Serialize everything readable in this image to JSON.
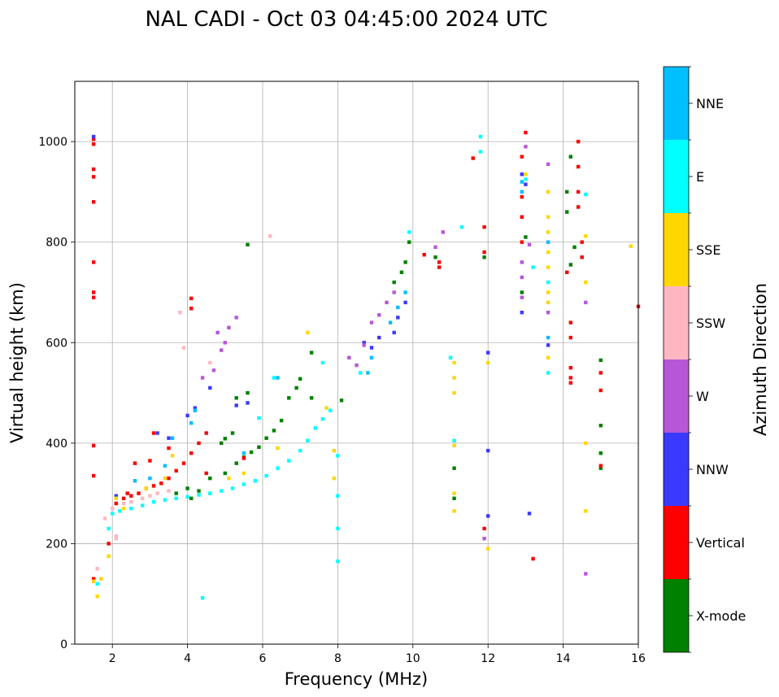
{
  "chart_data": {
    "type": "scatter",
    "title": "NAL CADI - Oct 03 04:45:00 2024 UTC",
    "xlabel": "Frequency (MHz)",
    "ylabel": "Virtual height (km)",
    "xlim": [
      1,
      16
    ],
    "ylim": [
      0,
      1120
    ],
    "xticks": [
      2,
      4,
      6,
      8,
      10,
      12,
      14,
      16
    ],
    "yticks": [
      0,
      200,
      400,
      600,
      800,
      1000
    ],
    "grid": true,
    "colorbar": {
      "label": "Azimuth Direction",
      "categories": [
        {
          "name": "X-mode",
          "color": "#008000"
        },
        {
          "name": "Vertical",
          "color": "#ff0000"
        },
        {
          "name": "NNW",
          "color": "#3a3aff"
        },
        {
          "name": "W",
          "color": "#b757d8"
        },
        {
          "name": "SSW",
          "color": "#ffb6c1"
        },
        {
          "name": "SSE",
          "color": "#ffd700"
        },
        {
          "name": "E",
          "color": "#00ffff"
        },
        {
          "name": "NNE",
          "color": "#00bfff"
        }
      ]
    },
    "series": [
      {
        "name": "X-mode",
        "points": [
          [
            5.3,
            360
          ],
          [
            5.5,
            372
          ],
          [
            5.7,
            382
          ],
          [
            5.9,
            392
          ],
          [
            6.1,
            410
          ],
          [
            6.3,
            425
          ],
          [
            6.5,
            445
          ],
          [
            6.7,
            490
          ],
          [
            6.9,
            510
          ],
          [
            7.0,
            528
          ],
          [
            7.3,
            580
          ],
          [
            5.0,
            409
          ],
          [
            5.2,
            420
          ],
          [
            5.6,
            795
          ],
          [
            7.3,
            490
          ],
          [
            8.1,
            485
          ],
          [
            9.5,
            720
          ],
          [
            9.7,
            740
          ],
          [
            9.8,
            760
          ],
          [
            9.9,
            800
          ],
          [
            10.6,
            770
          ],
          [
            11.9,
            770
          ],
          [
            11.1,
            290
          ],
          [
            11.1,
            350
          ],
          [
            12.9,
            700
          ],
          [
            13.0,
            810
          ],
          [
            14.1,
            860
          ],
          [
            14.1,
            900
          ],
          [
            14.2,
            970
          ],
          [
            14.2,
            755
          ],
          [
            14.3,
            790
          ],
          [
            15.0,
            350
          ],
          [
            15.0,
            380
          ],
          [
            15.0,
            435
          ],
          [
            15.0,
            565
          ],
          [
            4.1,
            290
          ],
          [
            4.6,
            330
          ],
          [
            4.9,
            400
          ],
          [
            5.0,
            340
          ],
          [
            4.3,
            305
          ],
          [
            5.3,
            490
          ],
          [
            5.6,
            500
          ],
          [
            3.7,
            300
          ],
          [
            4.0,
            310
          ]
        ]
      },
      {
        "name": "Vertical",
        "points": [
          [
            1.5,
            1005
          ],
          [
            1.5,
            995
          ],
          [
            1.5,
            945
          ],
          [
            1.5,
            930
          ],
          [
            1.5,
            880
          ],
          [
            1.5,
            760
          ],
          [
            1.5,
            700
          ],
          [
            1.5,
            690
          ],
          [
            1.5,
            395
          ],
          [
            1.5,
            335
          ],
          [
            1.5,
            130
          ],
          [
            1.9,
            200
          ],
          [
            2.1,
            280
          ],
          [
            2.3,
            290
          ],
          [
            2.4,
            300
          ],
          [
            2.5,
            295
          ],
          [
            2.7,
            300
          ],
          [
            2.9,
            310
          ],
          [
            3.1,
            315
          ],
          [
            3.3,
            320
          ],
          [
            3.5,
            330
          ],
          [
            3.7,
            345
          ],
          [
            3.9,
            360
          ],
          [
            4.1,
            380
          ],
          [
            4.3,
            400
          ],
          [
            4.5,
            420
          ],
          [
            4.1,
            688
          ],
          [
            4.1,
            668
          ],
          [
            3.0,
            365
          ],
          [
            3.5,
            390
          ],
          [
            2.6,
            360
          ],
          [
            3.1,
            420
          ],
          [
            4.5,
            340
          ],
          [
            5.5,
            370
          ],
          [
            10.3,
            775
          ],
          [
            10.7,
            760
          ],
          [
            10.7,
            750
          ],
          [
            11.6,
            967
          ],
          [
            11.9,
            830
          ],
          [
            11.9,
            780
          ],
          [
            11.9,
            230
          ],
          [
            12.9,
            970
          ],
          [
            12.9,
            890
          ],
          [
            12.9,
            850
          ],
          [
            12.9,
            800
          ],
          [
            13.0,
            1018
          ],
          [
            13.2,
            170
          ],
          [
            14.2,
            640
          ],
          [
            14.2,
            610
          ],
          [
            14.2,
            550
          ],
          [
            14.2,
            530
          ],
          [
            14.2,
            520
          ],
          [
            14.4,
            1000
          ],
          [
            14.4,
            950
          ],
          [
            14.4,
            900
          ],
          [
            14.4,
            870
          ],
          [
            14.5,
            800
          ],
          [
            14.5,
            770
          ],
          [
            15.0,
            540
          ],
          [
            15.0,
            505
          ],
          [
            15.0,
            355
          ],
          [
            16.0,
            672
          ],
          [
            14.1,
            740
          ]
        ]
      },
      {
        "name": "NNW",
        "points": [
          [
            1.5,
            1010
          ],
          [
            2.1,
            295
          ],
          [
            3.2,
            420
          ],
          [
            3.5,
            410
          ],
          [
            4.0,
            455
          ],
          [
            4.2,
            470
          ],
          [
            4.6,
            510
          ],
          [
            5.3,
            475
          ],
          [
            5.6,
            480
          ],
          [
            8.7,
            600
          ],
          [
            8.9,
            590
          ],
          [
            9.1,
            610
          ],
          [
            9.5,
            620
          ],
          [
            9.6,
            650
          ],
          [
            9.8,
            680
          ],
          [
            12.0,
            385
          ],
          [
            12.0,
            580
          ],
          [
            12.0,
            255
          ],
          [
            12.9,
            660
          ],
          [
            12.9,
            935
          ],
          [
            13.1,
            260
          ],
          [
            13.0,
            915
          ],
          [
            13.6,
            595
          ]
        ]
      },
      {
        "name": "W",
        "points": [
          [
            4.4,
            530
          ],
          [
            4.7,
            545
          ],
          [
            4.9,
            585
          ],
          [
            5.0,
            600
          ],
          [
            5.1,
            630
          ],
          [
            4.8,
            620
          ],
          [
            5.3,
            650
          ],
          [
            8.3,
            570
          ],
          [
            8.5,
            555
          ],
          [
            8.7,
            595
          ],
          [
            8.9,
            640
          ],
          [
            9.1,
            655
          ],
          [
            9.3,
            680
          ],
          [
            9.5,
            700
          ],
          [
            10.6,
            790
          ],
          [
            10.8,
            820
          ],
          [
            12.9,
            760
          ],
          [
            12.9,
            730
          ],
          [
            12.9,
            690
          ],
          [
            13.1,
            795
          ],
          [
            13.6,
            660
          ],
          [
            13.6,
            955
          ],
          [
            14.6,
            680
          ],
          [
            14.6,
            140
          ],
          [
            13.0,
            990
          ],
          [
            11.9,
            210
          ]
        ]
      },
      {
        "name": "SSW",
        "points": [
          [
            2.0,
            270
          ],
          [
            2.3,
            280
          ],
          [
            2.5,
            283
          ],
          [
            2.8,
            290
          ],
          [
            3.0,
            295
          ],
          [
            3.2,
            300
          ],
          [
            3.5,
            305
          ],
          [
            1.8,
            250
          ],
          [
            1.6,
            150
          ],
          [
            2.1,
            215
          ],
          [
            2.1,
            210
          ],
          [
            3.8,
            660
          ],
          [
            6.2,
            812
          ],
          [
            3.9,
            590
          ],
          [
            4.6,
            560
          ]
        ]
      },
      {
        "name": "SSE",
        "points": [
          [
            1.5,
            125
          ],
          [
            1.6,
            95
          ],
          [
            1.7,
            130
          ],
          [
            1.9,
            175
          ],
          [
            2.1,
            290
          ],
          [
            2.3,
            270
          ],
          [
            2.9,
            310
          ],
          [
            3.4,
            330
          ],
          [
            3.6,
            375
          ],
          [
            4.6,
            300
          ],
          [
            5.1,
            330
          ],
          [
            5.5,
            340
          ],
          [
            6.4,
            390
          ],
          [
            7.2,
            620
          ],
          [
            7.7,
            470
          ],
          [
            7.9,
            330
          ],
          [
            7.9,
            385
          ],
          [
            11.1,
            500
          ],
          [
            11.1,
            530
          ],
          [
            11.1,
            560
          ],
          [
            11.1,
            395
          ],
          [
            11.1,
            300
          ],
          [
            11.1,
            265
          ],
          [
            12.0,
            560
          ],
          [
            12.0,
            190
          ],
          [
            13.0,
            935
          ],
          [
            13.6,
            900
          ],
          [
            13.6,
            850
          ],
          [
            13.6,
            820
          ],
          [
            13.6,
            780
          ],
          [
            13.6,
            750
          ],
          [
            13.6,
            700
          ],
          [
            13.6,
            680
          ],
          [
            13.6,
            570
          ],
          [
            14.6,
            812
          ],
          [
            14.6,
            720
          ],
          [
            14.6,
            400
          ],
          [
            14.6,
            265
          ],
          [
            15.8,
            792
          ]
        ]
      },
      {
        "name": "E",
        "points": [
          [
            1.6,
            120
          ],
          [
            1.9,
            230
          ],
          [
            2.0,
            260
          ],
          [
            2.2,
            265
          ],
          [
            2.5,
            270
          ],
          [
            2.8,
            276
          ],
          [
            3.1,
            283
          ],
          [
            3.4,
            287
          ],
          [
            3.7,
            290
          ],
          [
            4.0,
            293
          ],
          [
            4.3,
            297
          ],
          [
            4.6,
            300
          ],
          [
            4.9,
            305
          ],
          [
            5.2,
            310
          ],
          [
            5.5,
            318
          ],
          [
            5.8,
            325
          ],
          [
            6.1,
            335
          ],
          [
            6.4,
            350
          ],
          [
            6.7,
            365
          ],
          [
            7.0,
            385
          ],
          [
            7.2,
            405
          ],
          [
            7.4,
            430
          ],
          [
            7.6,
            448
          ],
          [
            7.8,
            465
          ],
          [
            7.6,
            560
          ],
          [
            4.4,
            92
          ],
          [
            6.3,
            530
          ],
          [
            5.9,
            450
          ],
          [
            8.0,
            375
          ],
          [
            8.0,
            295
          ],
          [
            8.0,
            230
          ],
          [
            8.0,
            165
          ],
          [
            8.6,
            540
          ],
          [
            9.9,
            820
          ],
          [
            11.0,
            570
          ],
          [
            11.3,
            830
          ],
          [
            11.8,
            1010
          ],
          [
            11.8,
            980
          ],
          [
            11.1,
            405
          ],
          [
            13.0,
            925
          ],
          [
            13.2,
            750
          ],
          [
            13.6,
            720
          ],
          [
            13.6,
            540
          ],
          [
            14.6,
            895
          ]
        ]
      },
      {
        "name": "NNE",
        "points": [
          [
            2.6,
            325
          ],
          [
            3.0,
            330
          ],
          [
            3.4,
            355
          ],
          [
            3.6,
            410
          ],
          [
            4.1,
            440
          ],
          [
            4.2,
            465
          ],
          [
            5.5,
            380
          ],
          [
            6.4,
            530
          ],
          [
            8.8,
            540
          ],
          [
            8.9,
            570
          ],
          [
            9.4,
            640
          ],
          [
            9.6,
            670
          ],
          [
            9.8,
            700
          ],
          [
            12.9,
            920
          ],
          [
            12.9,
            900
          ],
          [
            13.6,
            800
          ],
          [
            13.6,
            610
          ]
        ]
      }
    ]
  }
}
